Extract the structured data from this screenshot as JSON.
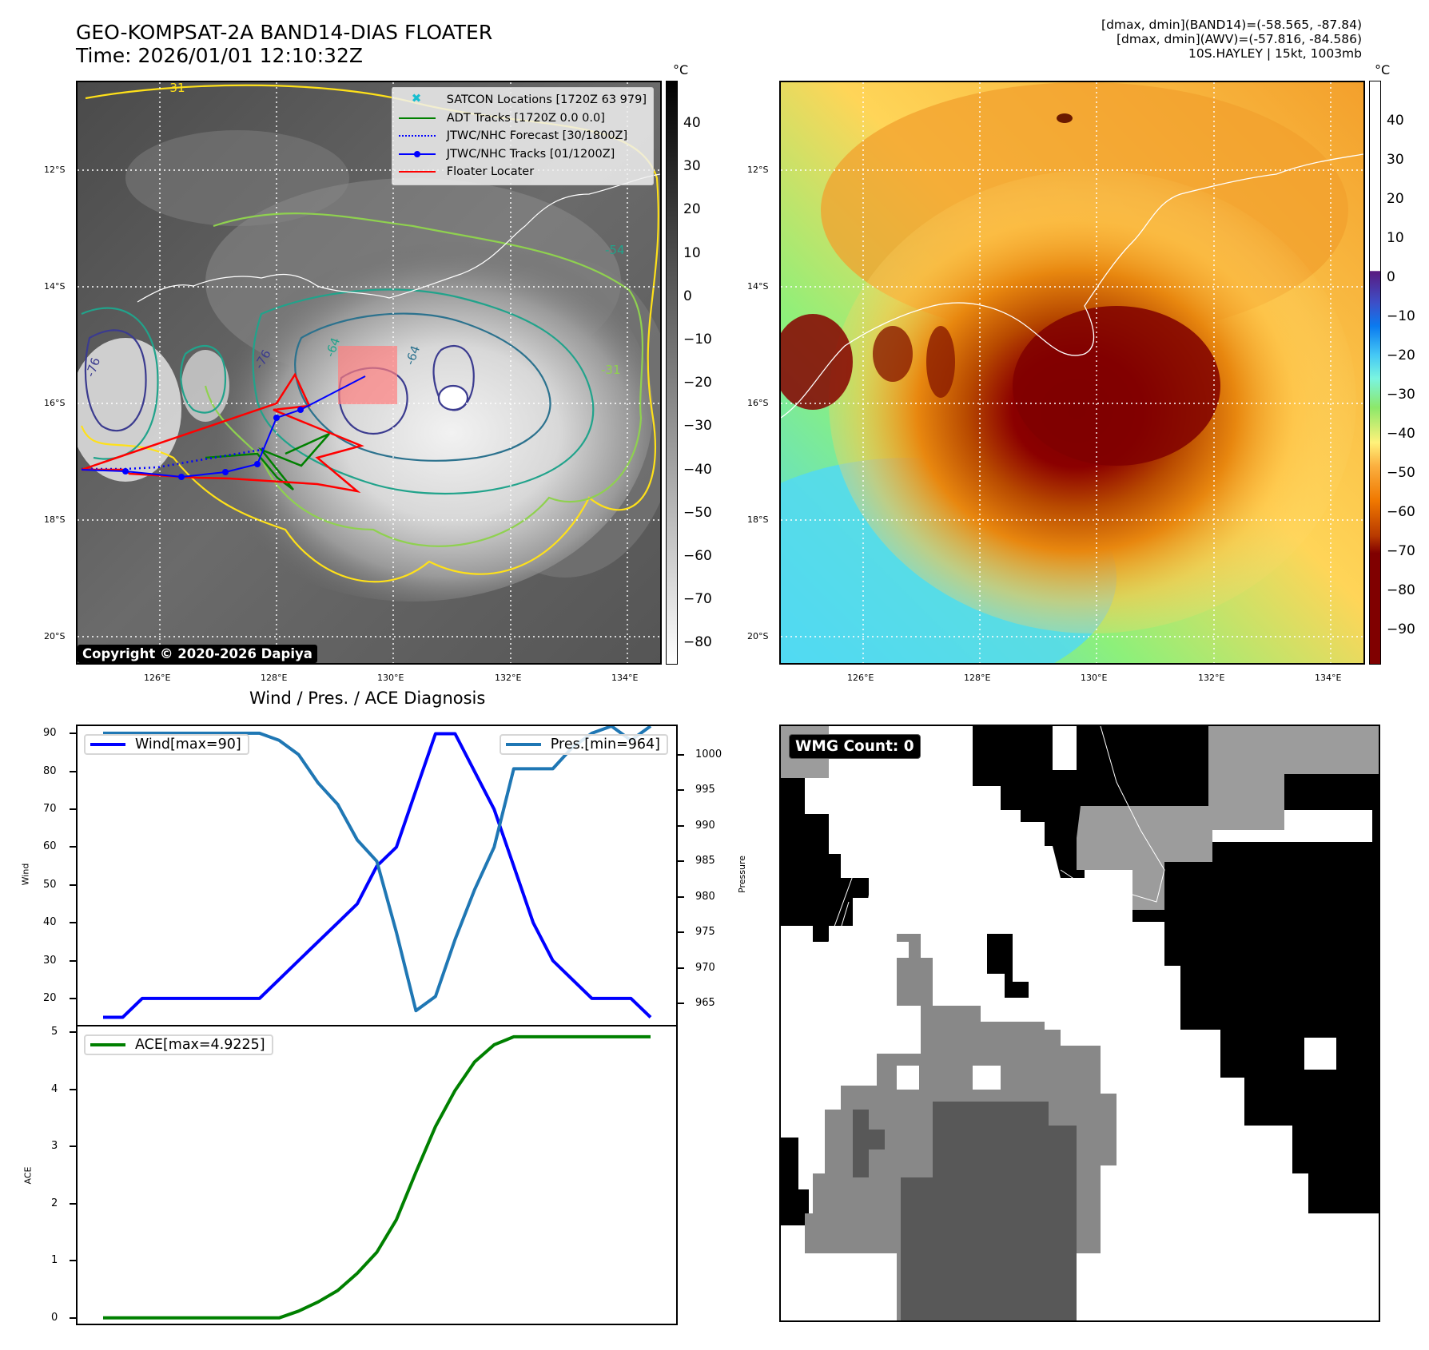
{
  "header": {
    "title_line1": "GEO-KOMPSAT-2A BAND14-DIAS FLOATER",
    "title_line2": "Time: 2026/01/01 12:10:32Z",
    "info_line1": "[dmax, dmin](BAND14)=(-58.565, -87.84)",
    "info_line2": "[dmax, dmin](AWV)=(-57.816, -84.586)",
    "info_line3": "10S.HAYLEY | 15kt, 1003mb"
  },
  "maps": {
    "lat_ticks": [
      "12°S",
      "14°S",
      "16°S",
      "18°S",
      "20°S"
    ],
    "lon_ticks": [
      "126°E",
      "128°E",
      "130°E",
      "132°E",
      "134°E"
    ],
    "left_colorbar": {
      "unit": "°C",
      "ticks": [
        "40",
        "30",
        "20",
        "10",
        "0",
        "−10",
        "−20",
        "−30",
        "−40",
        "−50",
        "−60",
        "−70",
        "−80"
      ]
    },
    "right_colorbar": {
      "unit": "°C",
      "ticks": [
        "40",
        "30",
        "20",
        "10",
        "0",
        "−10",
        "−20",
        "−30",
        "−40",
        "−50",
        "−60",
        "−70",
        "−80",
        "−90"
      ]
    },
    "legend": [
      {
        "label": "SATCON Locations [1720Z 63 979]",
        "color": "#17becf",
        "style": "x-marker"
      },
      {
        "label": "ADT Tracks [1720Z 0.0 0.0]",
        "color": "#008000",
        "style": "solid"
      },
      {
        "label": "JTWC/NHC Forecast [30/1800Z]",
        "color": "#0000ff",
        "style": "dotted"
      },
      {
        "label": "JTWC/NHC Tracks [01/1200Z]",
        "color": "#0000ff",
        "style": "line-dot"
      },
      {
        "label": "Floater Locater",
        "color": "#ff0000",
        "style": "solid"
      }
    ],
    "contour_labels": [
      "-54",
      "-31",
      "-31",
      "-64",
      "-76",
      "-76",
      "-64"
    ],
    "copyright": "Copyright © 2020-2026 Dapiya"
  },
  "diagnosis": {
    "title": "Wind / Pres. / ACE Diagnosis",
    "wmg_label": "WMG Count: 0"
  },
  "chart_data": [
    {
      "type": "line",
      "title": "Wind / Pres. / ACE Diagnosis",
      "ylabel": "Wind",
      "ylabel_right": "Pressure",
      "ylim": [
        13,
        92
      ],
      "ylim_right": [
        962,
        1004
      ],
      "yticks": [
        20,
        30,
        40,
        50,
        60,
        70,
        80,
        90
      ],
      "yticks_right": [
        965,
        970,
        975,
        980,
        985,
        990,
        995,
        1000
      ],
      "x": [
        0,
        1,
        2,
        3,
        4,
        5,
        6,
        7,
        8,
        9,
        10,
        11,
        12,
        13,
        14,
        15,
        16,
        17,
        18,
        19,
        20,
        21,
        22,
        23,
        24,
        25,
        26,
        27,
        28
      ],
      "series": [
        {
          "name": "Wind[max=90]",
          "axis": "left",
          "color": "#0000ff",
          "values": [
            15,
            15,
            20,
            20,
            20,
            20,
            20,
            20,
            20,
            25,
            30,
            35,
            40,
            45,
            55,
            60,
            75,
            90,
            90,
            80,
            70,
            55,
            40,
            30,
            25,
            20,
            20,
            20,
            15
          ]
        },
        {
          "name": "Pres.[min=964]",
          "axis": "right",
          "color": "#1f77b4",
          "values": [
            1003,
            1003,
            1003,
            1003,
            1003,
            1003,
            1003,
            1003,
            1003,
            1002,
            1000,
            996,
            993,
            988,
            985,
            975,
            964,
            966,
            974,
            981,
            987,
            998,
            998,
            998,
            1001,
            1003,
            1004,
            1002,
            1004
          ]
        }
      ]
    },
    {
      "type": "line",
      "ylabel": "ACE",
      "ylim": [
        -0.1,
        5.1
      ],
      "yticks": [
        0,
        1,
        2,
        3,
        4,
        5
      ],
      "x": [
        0,
        1,
        2,
        3,
        4,
        5,
        6,
        7,
        8,
        9,
        10,
        11,
        12,
        13,
        14,
        15,
        16,
        17,
        18,
        19,
        20,
        21,
        22,
        23,
        24,
        25,
        26,
        27,
        28
      ],
      "series": [
        {
          "name": "ACE[max=4.9225]",
          "color": "#008000",
          "values": [
            0,
            0,
            0,
            0,
            0,
            0,
            0,
            0,
            0,
            0,
            0.12,
            0.28,
            0.48,
            0.78,
            1.15,
            1.72,
            2.55,
            3.35,
            3.98,
            4.48,
            4.78,
            4.92,
            4.92,
            4.92,
            4.92,
            4.92,
            4.92,
            4.92,
            4.92
          ]
        }
      ]
    }
  ]
}
